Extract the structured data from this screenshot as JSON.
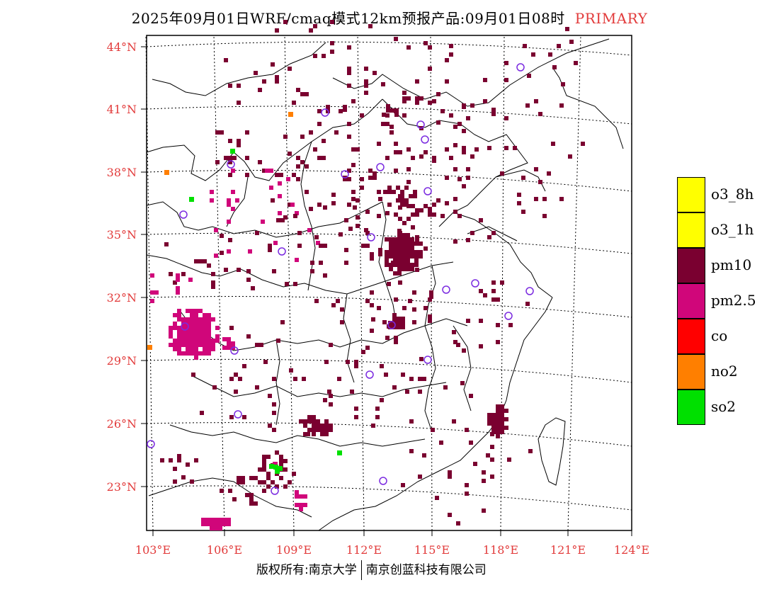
{
  "header": {
    "title": "2025年09月01日WRF/cmaq模式12km预报产品:09月01日08时",
    "tag": "PRIMARY"
  },
  "axes": {
    "lat_labels": [
      "44°N",
      "41°N",
      "38°N",
      "35°N",
      "32°N",
      "29°N",
      "26°N",
      "23°N"
    ],
    "lon_labels": [
      "103°E",
      "106°E",
      "109°E",
      "112°E",
      "115°E",
      "118°E",
      "121°E",
      "124°E"
    ],
    "label_color": "#e23b3b"
  },
  "legend": {
    "items": [
      {
        "label": "o3_8h",
        "color": "#ffff00"
      },
      {
        "label": "o3_1h",
        "color": "#ffff00"
      },
      {
        "label": "pm10",
        "color": "#7a0030"
      },
      {
        "label": "pm2.5",
        "color": "#d0067a"
      },
      {
        "label": "co",
        "color": "#ff0000"
      },
      {
        "label": "no2",
        "color": "#ff7f00"
      },
      {
        "label": "so2",
        "color": "#00e000"
      }
    ]
  },
  "footer": {
    "left": "版权所有:南京大学",
    "right": "南京创蓝科技有限公司"
  },
  "colors": {
    "pm10": "#7a0030",
    "pm25": "#d0067a",
    "no2": "#ff7f00",
    "so2": "#00e000",
    "station": "#7b2be0"
  }
}
